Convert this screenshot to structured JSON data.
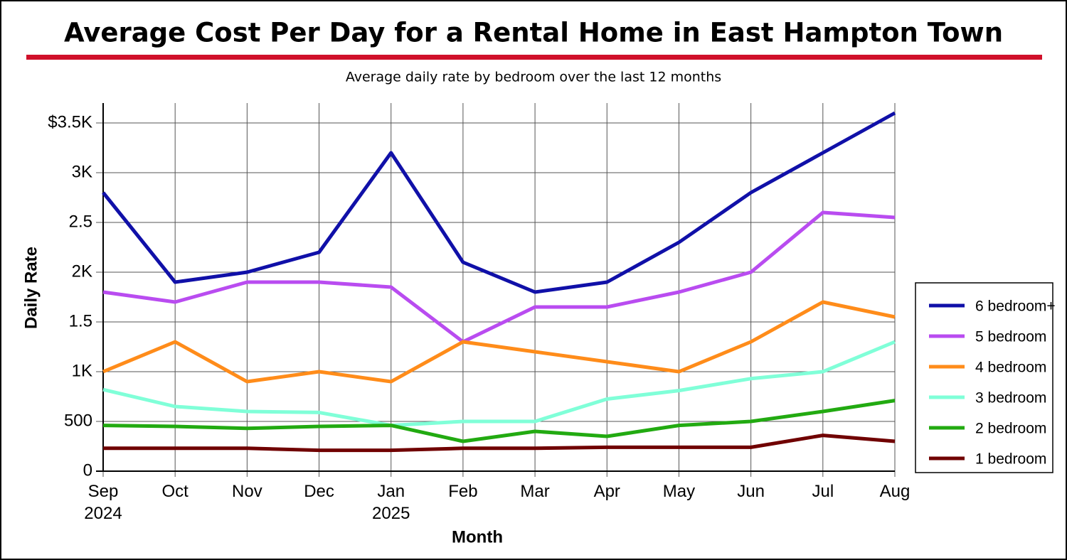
{
  "chart_data": {
    "type": "line",
    "title": "Average Cost Per Day for a Rental Home in East Hampton Town",
    "subtitle": "Average daily rate by bedroom over the last 12 months",
    "x_label": "Month",
    "y_label": "Daily Rate",
    "categories": [
      "Sep 2024",
      "Oct",
      "Nov",
      "Dec",
      "Jan 2025",
      "Feb",
      "Mar",
      "Apr",
      "May",
      "Jun",
      "Jul",
      "Aug"
    ],
    "series": [
      {
        "name": "6 bedroom+",
        "color": "#1010a8",
        "values": [
          2800,
          1900,
          2000,
          2200,
          3200,
          2100,
          1800,
          1900,
          2300,
          2800,
          3200,
          3600
        ]
      },
      {
        "name": "5 bedroom",
        "color": "#b94cf0",
        "values": [
          1800,
          1700,
          1900,
          1900,
          1850,
          1300,
          1650,
          1650,
          1800,
          2000,
          2600,
          2550
        ]
      },
      {
        "name": "4 bedroom",
        "color": "#ff8c1a",
        "values": [
          1000,
          1300,
          900,
          1000,
          900,
          1300,
          1200,
          1100,
          1000,
          1300,
          1700,
          1550
        ]
      },
      {
        "name": "3 bedroom",
        "color": "#80ffd8",
        "values": [
          820,
          650,
          600,
          590,
          460,
          500,
          500,
          725,
          810,
          930,
          1000,
          1300
        ]
      },
      {
        "name": "2 bedroom",
        "color": "#22aa11",
        "values": [
          460,
          450,
          430,
          450,
          460,
          300,
          400,
          350,
          460,
          500,
          600,
          710
        ]
      },
      {
        "name": "1 bedroom",
        "color": "#700000",
        "values": [
          230,
          230,
          230,
          210,
          210,
          230,
          230,
          240,
          240,
          240,
          360,
          300
        ]
      }
    ],
    "ylim": [
      0,
      3700
    ],
    "yticks": [
      0,
      500,
      {
        "value": 1000,
        "label": "1K"
      },
      {
        "value": 1500,
        "label": "1.5"
      },
      {
        "value": 2000,
        "label": "2K"
      },
      {
        "value": 2500,
        "label": "2.5"
      },
      {
        "value": 3000,
        "label": "3K"
      },
      {
        "value": 3500,
        "label": "$3.5K"
      }
    ],
    "grid": true,
    "legend": "right"
  }
}
